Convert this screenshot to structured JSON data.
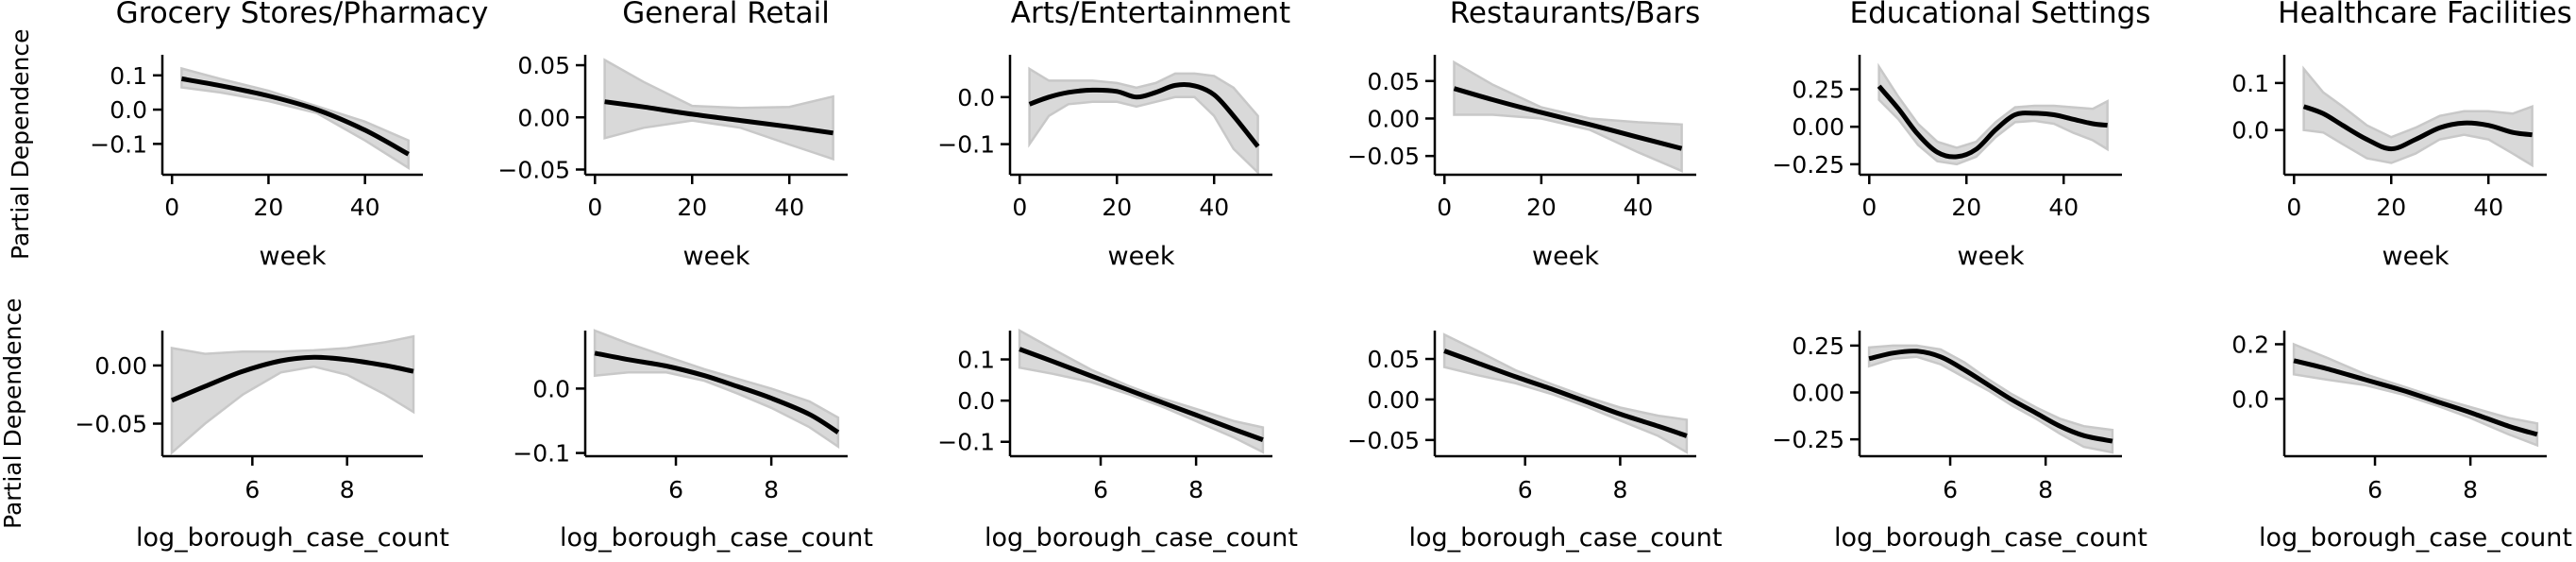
{
  "figure": {
    "ylabel": "Partial Dependence",
    "colors": {
      "line": "#000000",
      "band": "#d9d9d9",
      "band_edge": "#c8c8c8"
    }
  },
  "chart_data": [
    {
      "type": "line",
      "title": "Grocery Stores/Pharmacy",
      "xlabel": "week",
      "ylabel": "Partial Dependence",
      "xlim": [
        -2,
        52
      ],
      "ylim": [
        -0.19,
        0.16
      ],
      "xticks": [
        0,
        20,
        40
      ],
      "yticks": [
        0.1,
        0.0,
        -0.1
      ],
      "ytick_labels": [
        "0.1",
        "0.0",
        "−0.1"
      ],
      "series": [
        {
          "x": [
            2,
            10,
            20,
            30,
            40,
            49
          ],
          "y": [
            0.09,
            0.07,
            0.04,
            0.0,
            -0.06,
            -0.13
          ],
          "lower": [
            0.065,
            0.05,
            0.025,
            -0.01,
            -0.09,
            -0.17
          ],
          "upper": [
            0.12,
            0.09,
            0.055,
            0.01,
            -0.035,
            -0.09
          ]
        }
      ]
    },
    {
      "type": "line",
      "title": "General Retail",
      "xlabel": "week",
      "ylabel": "",
      "xlim": [
        -2,
        52
      ],
      "ylim": [
        -0.055,
        0.06
      ],
      "xticks": [
        0,
        20,
        40
      ],
      "yticks": [
        0.05,
        0.0,
        -0.05
      ],
      "ytick_labels": [
        "0.05",
        "0.00",
        "−0.05"
      ],
      "series": [
        {
          "x": [
            2,
            10,
            20,
            30,
            40,
            49
          ],
          "y": [
            0.015,
            0.01,
            0.003,
            -0.003,
            -0.009,
            -0.015
          ],
          "lower": [
            -0.02,
            -0.01,
            -0.003,
            -0.01,
            -0.026,
            -0.04
          ],
          "upper": [
            0.055,
            0.034,
            0.011,
            0.009,
            0.01,
            0.02
          ]
        }
      ]
    },
    {
      "type": "line",
      "title": "Arts/Entertainment",
      "xlabel": "week",
      "ylabel": "",
      "xlim": [
        -2,
        52
      ],
      "ylim": [
        -0.165,
        0.09
      ],
      "xticks": [
        0,
        20,
        40
      ],
      "yticks": [
        0.0,
        -0.1
      ],
      "ytick_labels": [
        "0.0",
        "−0.1"
      ],
      "series": [
        {
          "x": [
            2,
            6,
            10,
            15,
            20,
            24,
            28,
            32,
            36,
            40,
            44,
            49
          ],
          "y": [
            -0.015,
            0.0,
            0.01,
            0.015,
            0.012,
            0.0,
            0.01,
            0.025,
            0.024,
            0.005,
            -0.04,
            -0.105
          ],
          "lower": [
            -0.1,
            -0.04,
            -0.015,
            -0.01,
            -0.01,
            -0.02,
            -0.01,
            0.0,
            0.0,
            -0.04,
            -0.11,
            -0.16
          ],
          "upper": [
            0.06,
            0.035,
            0.035,
            0.035,
            0.03,
            0.02,
            0.03,
            0.05,
            0.05,
            0.045,
            0.02,
            -0.04
          ]
        }
      ]
    },
    {
      "type": "line",
      "title": "Restaurants/Bars",
      "xlabel": "week",
      "ylabel": "",
      "xlim": [
        -2,
        52
      ],
      "ylim": [
        -0.075,
        0.085
      ],
      "xticks": [
        0,
        20,
        40
      ],
      "yticks": [
        0.05,
        0.0,
        -0.05
      ],
      "ytick_labels": [
        "0.05",
        "0.00",
        "−0.05"
      ],
      "series": [
        {
          "x": [
            2,
            10,
            20,
            30,
            40,
            49
          ],
          "y": [
            0.04,
            0.025,
            0.008,
            -0.008,
            -0.025,
            -0.04
          ],
          "lower": [
            0.005,
            0.005,
            0.0,
            -0.015,
            -0.045,
            -0.07
          ],
          "upper": [
            0.075,
            0.045,
            0.015,
            0.0,
            -0.005,
            -0.008
          ]
        }
      ]
    },
    {
      "type": "line",
      "title": "Educational Settings",
      "xlabel": "week",
      "ylabel": "",
      "xlim": [
        -2,
        52
      ],
      "ylim": [
        -0.32,
        0.48
      ],
      "xticks": [
        0,
        20,
        40
      ],
      "yticks": [
        0.25,
        0.0,
        -0.25
      ],
      "ytick_labels": [
        "0.25",
        "0.00",
        "−0.25"
      ],
      "series": [
        {
          "x": [
            2,
            6,
            10,
            14,
            18,
            22,
            26,
            30,
            34,
            38,
            42,
            46,
            49
          ],
          "y": [
            0.27,
            0.12,
            -0.05,
            -0.17,
            -0.2,
            -0.15,
            -0.02,
            0.08,
            0.09,
            0.08,
            0.05,
            0.02,
            0.01
          ],
          "lower": [
            0.18,
            0.05,
            -0.12,
            -0.23,
            -0.25,
            -0.2,
            -0.07,
            0.03,
            0.04,
            0.02,
            -0.04,
            -0.09,
            -0.15
          ],
          "upper": [
            0.4,
            0.2,
            0.02,
            -0.1,
            -0.14,
            -0.1,
            0.03,
            0.13,
            0.14,
            0.14,
            0.13,
            0.12,
            0.17
          ]
        }
      ]
    },
    {
      "type": "line",
      "title": "Healthcare Facilities",
      "xlabel": "week",
      "ylabel": "",
      "xlim": [
        -2,
        52
      ],
      "ylim": [
        -0.095,
        0.16
      ],
      "xticks": [
        0,
        20,
        40
      ],
      "yticks": [
        0.1,
        0.0
      ],
      "ytick_labels": [
        "0.1",
        "0.0"
      ],
      "series": [
        {
          "x": [
            2,
            6,
            10,
            15,
            20,
            25,
            30,
            35,
            40,
            45,
            49
          ],
          "y": [
            0.05,
            0.035,
            0.01,
            -0.02,
            -0.04,
            -0.02,
            0.005,
            0.015,
            0.01,
            -0.005,
            -0.01
          ],
          "lower": [
            0.0,
            -0.005,
            -0.03,
            -0.06,
            -0.07,
            -0.05,
            -0.02,
            -0.01,
            -0.02,
            -0.05,
            -0.075
          ],
          "upper": [
            0.13,
            0.08,
            0.05,
            0.01,
            -0.015,
            0.005,
            0.03,
            0.04,
            0.04,
            0.035,
            0.05
          ]
        }
      ]
    },
    {
      "type": "line",
      "title": "",
      "xlabel": "log_borough_case_count",
      "ylabel": "Partial Dependence",
      "xlim": [
        4.1,
        9.6
      ],
      "ylim": [
        -0.078,
        0.03
      ],
      "xticks": [
        6,
        8
      ],
      "yticks": [
        0.0,
        -0.05
      ],
      "ytick_labels": [
        "0.00",
        "−0.05"
      ],
      "series": [
        {
          "x": [
            4.3,
            5.0,
            5.8,
            6.6,
            7.3,
            8.0,
            8.8,
            9.4
          ],
          "y": [
            -0.03,
            -0.018,
            -0.005,
            0.004,
            0.007,
            0.005,
            0.0,
            -0.005
          ],
          "lower": [
            -0.075,
            -0.05,
            -0.025,
            -0.006,
            -0.001,
            -0.008,
            -0.025,
            -0.04
          ],
          "upper": [
            0.015,
            0.01,
            0.012,
            0.012,
            0.013,
            0.015,
            0.02,
            0.025
          ]
        }
      ]
    },
    {
      "type": "line",
      "title": "",
      "xlabel": "log_borough_case_count",
      "ylabel": "",
      "xlim": [
        4.1,
        9.6
      ],
      "ylim": [
        -0.105,
        0.09
      ],
      "xticks": [
        6,
        8
      ],
      "yticks": [
        0.0,
        -0.1
      ],
      "ytick_labels": [
        "0.0",
        "−0.1"
      ],
      "series": [
        {
          "x": [
            4.3,
            5.0,
            5.8,
            6.6,
            7.3,
            8.0,
            8.8,
            9.4
          ],
          "y": [
            0.055,
            0.045,
            0.035,
            0.02,
            0.003,
            -0.015,
            -0.04,
            -0.068
          ],
          "lower": [
            0.02,
            0.025,
            0.025,
            0.012,
            -0.008,
            -0.03,
            -0.06,
            -0.09
          ],
          "upper": [
            0.09,
            0.07,
            0.05,
            0.03,
            0.015,
            0.0,
            -0.02,
            -0.045
          ]
        }
      ]
    },
    {
      "type": "line",
      "title": "",
      "xlabel": "log_borough_case_count",
      "ylabel": "",
      "xlim": [
        4.1,
        9.6
      ],
      "ylim": [
        -0.135,
        0.17
      ],
      "xticks": [
        6,
        8
      ],
      "yticks": [
        0.1,
        0.0,
        -0.1
      ],
      "ytick_labels": [
        "0.1",
        "0.0",
        "−0.1"
      ],
      "series": [
        {
          "x": [
            4.3,
            5.0,
            5.8,
            6.6,
            7.3,
            8.0,
            8.8,
            9.4
          ],
          "y": [
            0.125,
            0.095,
            0.06,
            0.025,
            -0.005,
            -0.035,
            -0.07,
            -0.095
          ],
          "lower": [
            0.08,
            0.065,
            0.045,
            0.015,
            -0.015,
            -0.05,
            -0.09,
            -0.125
          ],
          "upper": [
            0.17,
            0.125,
            0.075,
            0.035,
            0.005,
            -0.02,
            -0.05,
            -0.065
          ]
        }
      ]
    },
    {
      "type": "line",
      "title": "",
      "xlabel": "log_borough_case_count",
      "ylabel": "",
      "xlim": [
        4.1,
        9.6
      ],
      "ylim": [
        -0.07,
        0.085
      ],
      "xticks": [
        6,
        8
      ],
      "yticks": [
        0.05,
        0.0,
        -0.05
      ],
      "ytick_labels": [
        "0.05",
        "0.00",
        "−0.05"
      ],
      "series": [
        {
          "x": [
            4.3,
            5.0,
            5.8,
            6.6,
            7.3,
            8.0,
            8.8,
            9.4
          ],
          "y": [
            0.06,
            0.045,
            0.028,
            0.012,
            -0.003,
            -0.018,
            -0.033,
            -0.045
          ],
          "lower": [
            0.04,
            0.03,
            0.02,
            0.006,
            -0.009,
            -0.026,
            -0.045,
            -0.065
          ],
          "upper": [
            0.08,
            0.06,
            0.036,
            0.018,
            0.003,
            -0.01,
            -0.02,
            -0.025
          ]
        }
      ]
    },
    {
      "type": "line",
      "title": "",
      "xlabel": "log_borough_case_count",
      "ylabel": "",
      "xlim": [
        4.1,
        9.6
      ],
      "ylim": [
        -0.34,
        0.33
      ],
      "xticks": [
        6,
        8
      ],
      "yticks": [
        0.25,
        0.0,
        -0.25
      ],
      "ytick_labels": [
        "0.25",
        "0.00",
        "−0.25"
      ],
      "series": [
        {
          "x": [
            4.3,
            4.8,
            5.3,
            5.8,
            6.3,
            6.8,
            7.3,
            7.8,
            8.3,
            8.8,
            9.4
          ],
          "y": [
            0.18,
            0.21,
            0.22,
            0.19,
            0.12,
            0.04,
            -0.04,
            -0.11,
            -0.18,
            -0.23,
            -0.26
          ],
          "lower": [
            0.14,
            0.18,
            0.19,
            0.15,
            0.08,
            0.01,
            -0.07,
            -0.14,
            -0.22,
            -0.29,
            -0.32
          ],
          "upper": [
            0.24,
            0.25,
            0.25,
            0.23,
            0.16,
            0.07,
            -0.01,
            -0.08,
            -0.14,
            -0.18,
            -0.2
          ]
        }
      ]
    },
    {
      "type": "line",
      "title": "",
      "xlabel": "log_borough_case_count",
      "ylabel": "",
      "xlim": [
        4.1,
        9.6
      ],
      "ylim": [
        -0.21,
        0.25
      ],
      "xticks": [
        6,
        8
      ],
      "yticks": [
        0.2,
        0.0
      ],
      "ytick_labels": [
        "0.2",
        "0.0"
      ],
      "series": [
        {
          "x": [
            4.3,
            5.0,
            5.8,
            6.6,
            7.3,
            8.0,
            8.8,
            9.4
          ],
          "y": [
            0.14,
            0.11,
            0.07,
            0.03,
            -0.01,
            -0.05,
            -0.1,
            -0.13
          ],
          "lower": [
            0.09,
            0.07,
            0.05,
            0.015,
            -0.025,
            -0.07,
            -0.13,
            -0.17
          ],
          "upper": [
            0.2,
            0.15,
            0.09,
            0.045,
            0.005,
            -0.03,
            -0.07,
            -0.09
          ]
        }
      ]
    }
  ]
}
